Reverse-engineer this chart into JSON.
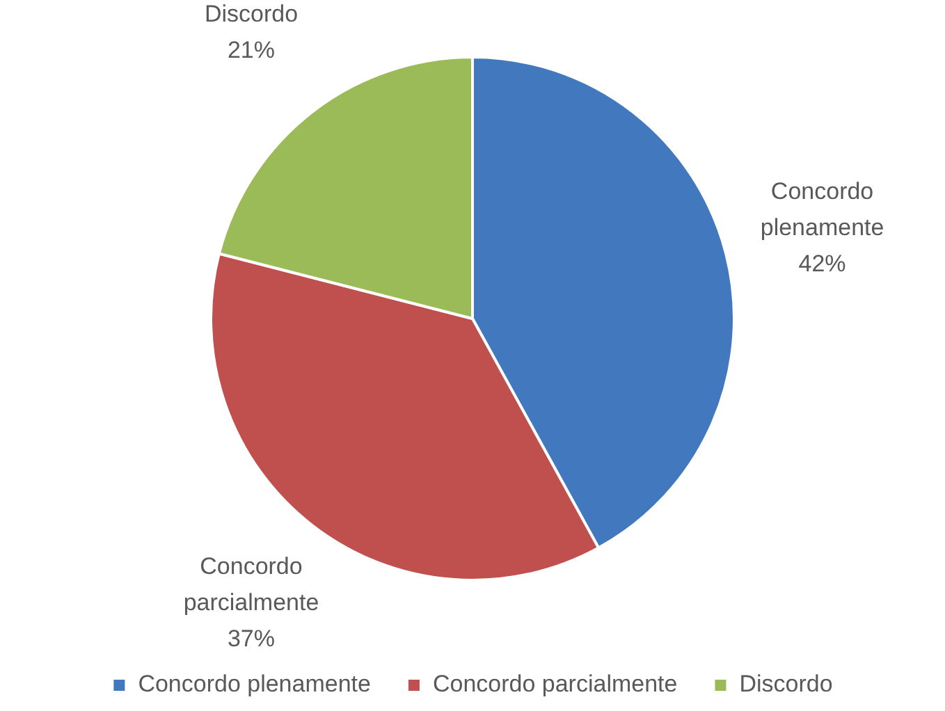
{
  "chart_data": {
    "type": "pie",
    "categories": [
      "Concordo plenamente",
      "Concordo parcialmente",
      "Discordo"
    ],
    "values": [
      42,
      37,
      21
    ],
    "colors": [
      "#4178be",
      "#c0504d",
      "#9bbb59"
    ],
    "value_labels": [
      "42%",
      "37%",
      "21%"
    ],
    "legend": "bottom"
  }
}
